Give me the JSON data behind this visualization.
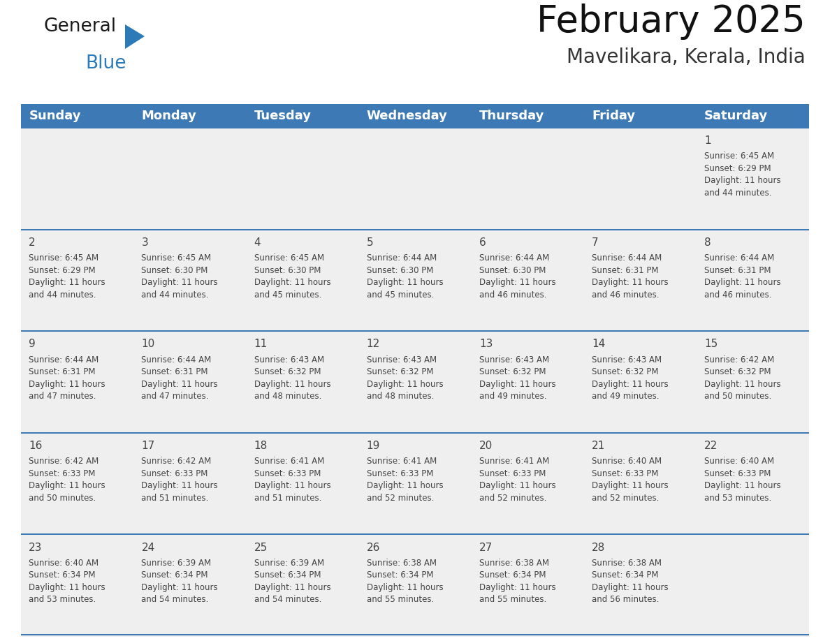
{
  "title": "February 2025",
  "subtitle": "Mavelikara, Kerala, India",
  "header_bg": "#3d7ab5",
  "header_text_color": "#ffffff",
  "cell_bg": "#efefef",
  "border_color": "#3d7ab5",
  "text_color": "#444444",
  "days_of_week": [
    "Sunday",
    "Monday",
    "Tuesday",
    "Wednesday",
    "Thursday",
    "Friday",
    "Saturday"
  ],
  "weeks": [
    [
      {
        "day": "",
        "info": ""
      },
      {
        "day": "",
        "info": ""
      },
      {
        "day": "",
        "info": ""
      },
      {
        "day": "",
        "info": ""
      },
      {
        "day": "",
        "info": ""
      },
      {
        "day": "",
        "info": ""
      },
      {
        "day": "1",
        "info": "Sunrise: 6:45 AM\nSunset: 6:29 PM\nDaylight: 11 hours\nand 44 minutes."
      }
    ],
    [
      {
        "day": "2",
        "info": "Sunrise: 6:45 AM\nSunset: 6:29 PM\nDaylight: 11 hours\nand 44 minutes."
      },
      {
        "day": "3",
        "info": "Sunrise: 6:45 AM\nSunset: 6:30 PM\nDaylight: 11 hours\nand 44 minutes."
      },
      {
        "day": "4",
        "info": "Sunrise: 6:45 AM\nSunset: 6:30 PM\nDaylight: 11 hours\nand 45 minutes."
      },
      {
        "day": "5",
        "info": "Sunrise: 6:44 AM\nSunset: 6:30 PM\nDaylight: 11 hours\nand 45 minutes."
      },
      {
        "day": "6",
        "info": "Sunrise: 6:44 AM\nSunset: 6:30 PM\nDaylight: 11 hours\nand 46 minutes."
      },
      {
        "day": "7",
        "info": "Sunrise: 6:44 AM\nSunset: 6:31 PM\nDaylight: 11 hours\nand 46 minutes."
      },
      {
        "day": "8",
        "info": "Sunrise: 6:44 AM\nSunset: 6:31 PM\nDaylight: 11 hours\nand 46 minutes."
      }
    ],
    [
      {
        "day": "9",
        "info": "Sunrise: 6:44 AM\nSunset: 6:31 PM\nDaylight: 11 hours\nand 47 minutes."
      },
      {
        "day": "10",
        "info": "Sunrise: 6:44 AM\nSunset: 6:31 PM\nDaylight: 11 hours\nand 47 minutes."
      },
      {
        "day": "11",
        "info": "Sunrise: 6:43 AM\nSunset: 6:32 PM\nDaylight: 11 hours\nand 48 minutes."
      },
      {
        "day": "12",
        "info": "Sunrise: 6:43 AM\nSunset: 6:32 PM\nDaylight: 11 hours\nand 48 minutes."
      },
      {
        "day": "13",
        "info": "Sunrise: 6:43 AM\nSunset: 6:32 PM\nDaylight: 11 hours\nand 49 minutes."
      },
      {
        "day": "14",
        "info": "Sunrise: 6:43 AM\nSunset: 6:32 PM\nDaylight: 11 hours\nand 49 minutes."
      },
      {
        "day": "15",
        "info": "Sunrise: 6:42 AM\nSunset: 6:32 PM\nDaylight: 11 hours\nand 50 minutes."
      }
    ],
    [
      {
        "day": "16",
        "info": "Sunrise: 6:42 AM\nSunset: 6:33 PM\nDaylight: 11 hours\nand 50 minutes."
      },
      {
        "day": "17",
        "info": "Sunrise: 6:42 AM\nSunset: 6:33 PM\nDaylight: 11 hours\nand 51 minutes."
      },
      {
        "day": "18",
        "info": "Sunrise: 6:41 AM\nSunset: 6:33 PM\nDaylight: 11 hours\nand 51 minutes."
      },
      {
        "day": "19",
        "info": "Sunrise: 6:41 AM\nSunset: 6:33 PM\nDaylight: 11 hours\nand 52 minutes."
      },
      {
        "day": "20",
        "info": "Sunrise: 6:41 AM\nSunset: 6:33 PM\nDaylight: 11 hours\nand 52 minutes."
      },
      {
        "day": "21",
        "info": "Sunrise: 6:40 AM\nSunset: 6:33 PM\nDaylight: 11 hours\nand 52 minutes."
      },
      {
        "day": "22",
        "info": "Sunrise: 6:40 AM\nSunset: 6:33 PM\nDaylight: 11 hours\nand 53 minutes."
      }
    ],
    [
      {
        "day": "23",
        "info": "Sunrise: 6:40 AM\nSunset: 6:34 PM\nDaylight: 11 hours\nand 53 minutes."
      },
      {
        "day": "24",
        "info": "Sunrise: 6:39 AM\nSunset: 6:34 PM\nDaylight: 11 hours\nand 54 minutes."
      },
      {
        "day": "25",
        "info": "Sunrise: 6:39 AM\nSunset: 6:34 PM\nDaylight: 11 hours\nand 54 minutes."
      },
      {
        "day": "26",
        "info": "Sunrise: 6:38 AM\nSunset: 6:34 PM\nDaylight: 11 hours\nand 55 minutes."
      },
      {
        "day": "27",
        "info": "Sunrise: 6:38 AM\nSunset: 6:34 PM\nDaylight: 11 hours\nand 55 minutes."
      },
      {
        "day": "28",
        "info": "Sunrise: 6:38 AM\nSunset: 6:34 PM\nDaylight: 11 hours\nand 56 minutes."
      },
      {
        "day": "",
        "info": ""
      }
    ]
  ],
  "logo_color1": "#1a1a1a",
  "logo_color2": "#2d7ab8",
  "logo_triangle_color": "#2d7ab8",
  "title_fontsize": 38,
  "subtitle_fontsize": 20,
  "header_fontsize": 13,
  "day_num_fontsize": 11,
  "info_fontsize": 8.5,
  "fig_width": 11.88,
  "fig_height": 9.18,
  "dpi": 100
}
